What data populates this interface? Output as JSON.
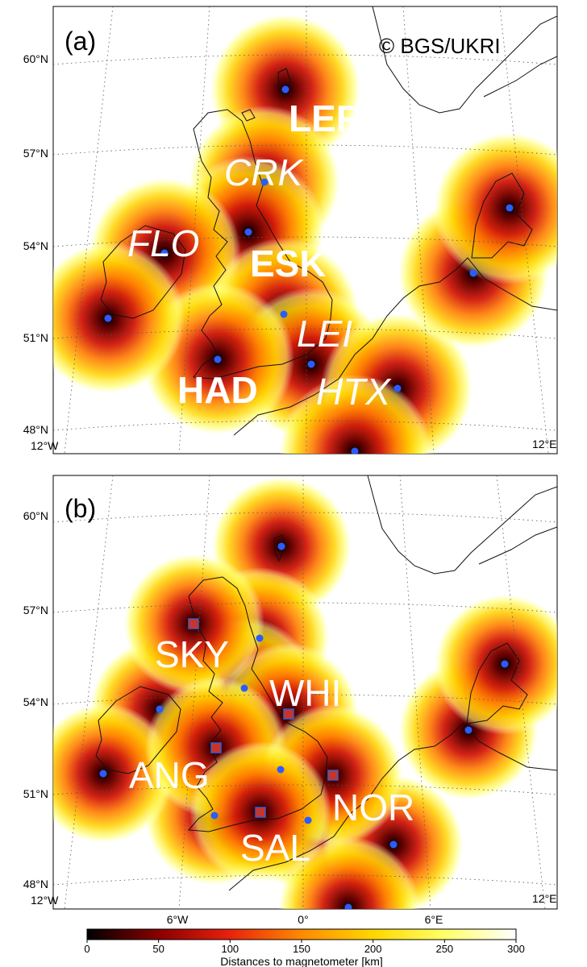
{
  "copyright": "© BGS/UKRI",
  "panels": [
    {
      "label": "(a)",
      "lat_labels": [
        "60°N",
        "57°N",
        "54°N",
        "51°N",
        "48°N"
      ],
      "lon_left": "12°W",
      "lon_right": "12°E",
      "observatories": [
        {
          "code": "LER",
          "lat": 60.1,
          "lon": -1.2,
          "italic": false,
          "bold": true
        },
        {
          "code": "CRK",
          "lat": 56.0,
          "lon": -2.5,
          "italic": true,
          "bold": false
        },
        {
          "code": "FLO",
          "lat": 54.0,
          "lon": -7.0,
          "italic": true,
          "bold": false
        },
        {
          "code": "ESK",
          "lat": 55.3,
          "lon": -3.2,
          "italic": false,
          "bold": true
        },
        {
          "code": "LEI",
          "lat": 50.9,
          "lon": 0.3,
          "italic": true,
          "bold": false
        },
        {
          "code": "HAD",
          "lat": 51.0,
          "lon": -4.5,
          "italic": false,
          "bold": true
        },
        {
          "code": "HTX",
          "lat": 50.3,
          "lon": 4.6,
          "italic": true,
          "bold": false
        }
      ]
    },
    {
      "label": "(b)",
      "lat_labels": [
        "60°N",
        "57°N",
        "54°N",
        "51°N",
        "48°N"
      ],
      "lon_left": "12°W",
      "lon_right": "12°E",
      "new_sites": [
        {
          "code": "SKY",
          "lat": 57.3,
          "lon": -6.2
        },
        {
          "code": "WHI",
          "lat": 54.5,
          "lon": -0.6
        },
        {
          "code": "ANG",
          "lat": 53.3,
          "lon": -4.4
        },
        {
          "code": "NOR",
          "lat": 52.6,
          "lon": 1.3
        },
        {
          "code": "SAL",
          "lat": 51.1,
          "lon": -1.8
        }
      ]
    }
  ],
  "colorbar": {
    "ticks": [
      "0",
      "50",
      "100",
      "150",
      "200",
      "250",
      "300"
    ],
    "label": "Distances to magnetometer [km]",
    "range_km": [
      0,
      300
    ],
    "colors": [
      "#000000",
      "#8b0000",
      "#e8200c",
      "#ff8a00",
      "#ffd800",
      "#ffff66",
      "#ffffff"
    ]
  },
  "lon_axis_labels": [
    "6°W",
    "0°",
    "6°E"
  ],
  "colors": {
    "dot": "#2a5cff",
    "square": "#c8342c",
    "coast": "#111111"
  }
}
